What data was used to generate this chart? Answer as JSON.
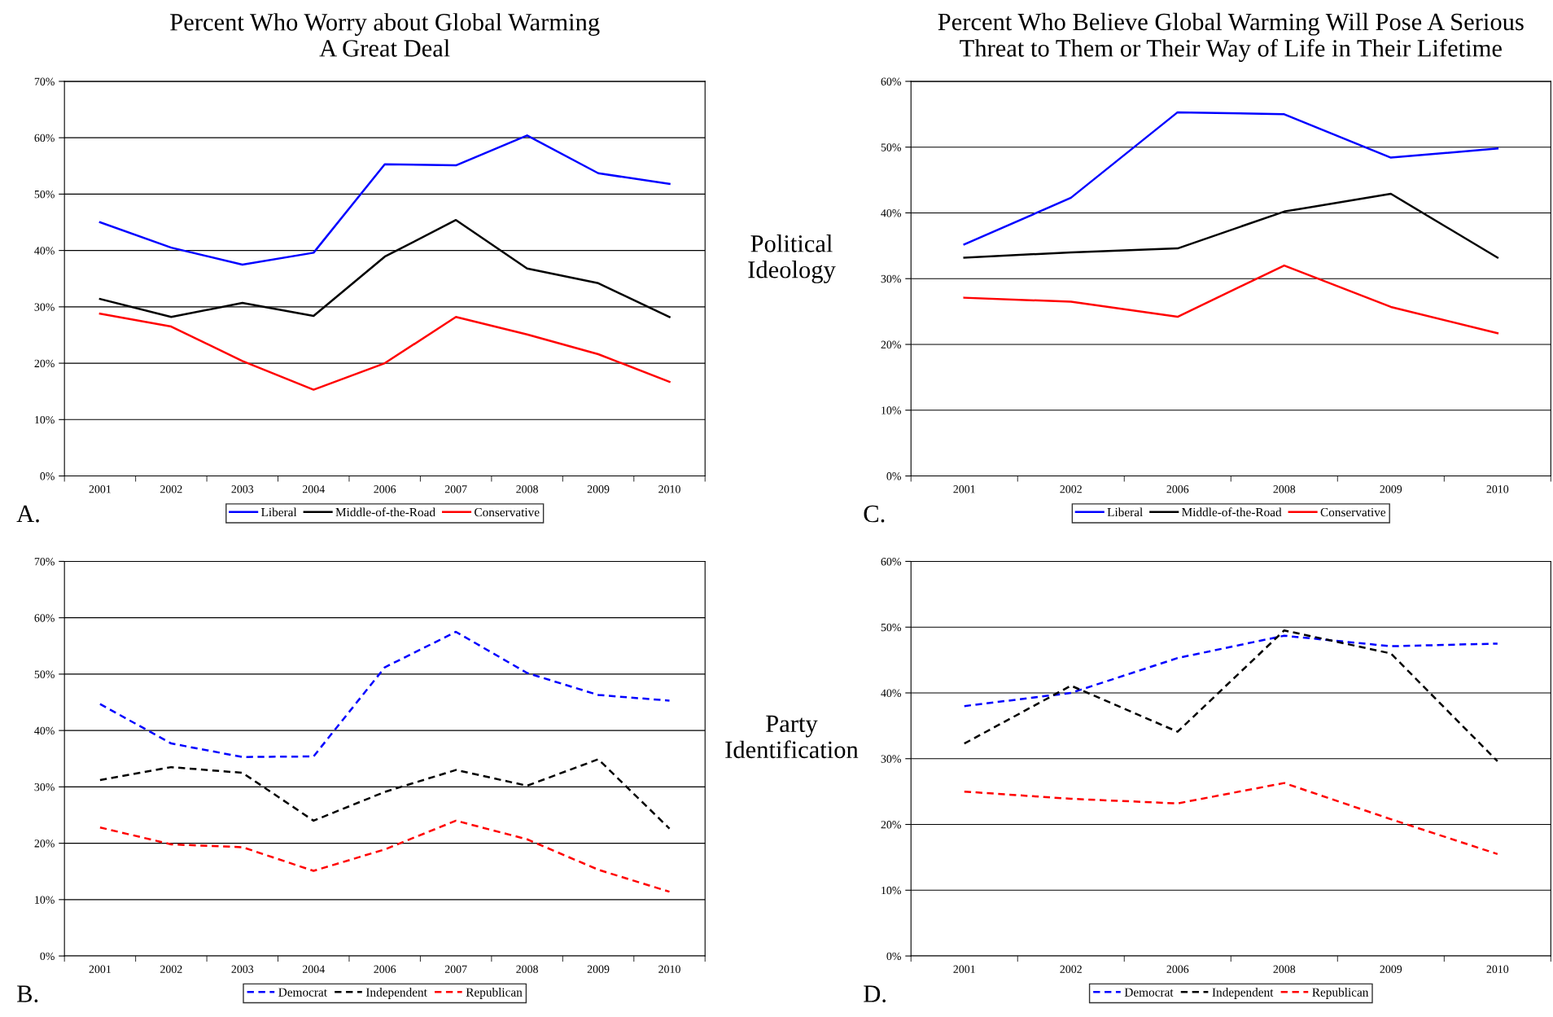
{
  "chart_data": [
    {
      "type": "line",
      "title": "Percent Who Worry about Global Warming\nA Great Deal",
      "categories": [
        "2001",
        "2002",
        "2003",
        "2004",
        "2006",
        "2007",
        "2008",
        "2009",
        "2010"
      ],
      "series": [
        {
          "name": "Liberal",
          "color": "#0000ff",
          "values": [
            45.0,
            40.5,
            37.5,
            39.6,
            55.3,
            55.1,
            60.4,
            53.7,
            51.8
          ]
        },
        {
          "name": "Middle-of-the-Road",
          "color": "#000000",
          "values": [
            31.4,
            28.2,
            30.7,
            28.4,
            38.9,
            45.4,
            36.8,
            34.2,
            28.2
          ]
        },
        {
          "name": "Conservative",
          "color": "#ff0000",
          "values": [
            28.8,
            26.5,
            20.4,
            15.3,
            20.0,
            28.2,
            25.1,
            21.6,
            16.7
          ]
        }
      ],
      "ylim": [
        0,
        70
      ],
      "yticks": [
        {
          "value": 0,
          "label": "0%"
        },
        {
          "value": 10,
          "label": "10%"
        },
        {
          "value": 20,
          "label": "20%"
        },
        {
          "value": 30,
          "label": "30%"
        },
        {
          "value": 40,
          "label": "40%"
        },
        {
          "value": 50,
          "label": "50%"
        },
        {
          "value": 60,
          "label": "60%"
        },
        {
          "value": 70,
          "label": "70%"
        }
      ],
      "grid": "y",
      "legend": "bottom",
      "line_style": "solid",
      "marker": "none",
      "annotations": [
        "A.",
        "Political\nIdeology"
      ]
    },
    {
      "type": "line",
      "categories": [
        "2001",
        "2002",
        "2003",
        "2004",
        "2006",
        "2007",
        "2008",
        "2009",
        "2010"
      ],
      "series": [
        {
          "name": "Democrat",
          "color": "#0000ff",
          "values": [
            44.7,
            37.7,
            35.3,
            35.4,
            51.2,
            57.5,
            50.2,
            46.3,
            45.3
          ]
        },
        {
          "name": "Independent",
          "color": "#000000",
          "values": [
            31.2,
            33.5,
            32.5,
            24.0,
            29.1,
            33.0,
            30.2,
            34.9,
            22.6
          ]
        },
        {
          "name": "Republican",
          "color": "#ff0000",
          "values": [
            22.8,
            19.8,
            19.3,
            15.1,
            18.9,
            24.0,
            20.7,
            15.3,
            11.4
          ]
        }
      ],
      "ylim": [
        0,
        70
      ],
      "yticks": [
        {
          "value": 0,
          "label": "0%"
        },
        {
          "value": 10,
          "label": "10%"
        },
        {
          "value": 20,
          "label": "20%"
        },
        {
          "value": 30,
          "label": "30%"
        },
        {
          "value": 40,
          "label": "40%"
        },
        {
          "value": 50,
          "label": "50%"
        },
        {
          "value": 60,
          "label": "60%"
        },
        {
          "value": 70,
          "label": "70%"
        }
      ],
      "grid": "y",
      "legend": "bottom",
      "line_style": "dashed",
      "marker": "none",
      "annotations": [
        "B.",
        "Party\nIdentification"
      ]
    },
    {
      "type": "line",
      "title": "Percent Who Believe Global Warming Will Pose A Serious\nThreat to Them or Their Way of Life in Their Lifetime",
      "categories": [
        "2001",
        "2002",
        "2006",
        "2008",
        "2009",
        "2010"
      ],
      "series": [
        {
          "name": "Liberal",
          "color": "#0000ff",
          "values": [
            35.2,
            42.3,
            55.3,
            55.0,
            48.4,
            49.8
          ]
        },
        {
          "name": "Middle-of-the-Road",
          "color": "#000000",
          "values": [
            33.2,
            34.0,
            34.6,
            40.2,
            42.9,
            33.2
          ]
        },
        {
          "name": "Conservative",
          "color": "#ff0000",
          "values": [
            27.1,
            26.5,
            24.2,
            32.0,
            25.7,
            21.7
          ]
        }
      ],
      "ylim": [
        0,
        60
      ],
      "yticks": [
        {
          "value": 0,
          "label": "0%"
        },
        {
          "value": 10,
          "label": "10%"
        },
        {
          "value": 20,
          "label": "20%"
        },
        {
          "value": 30,
          "label": "30%"
        },
        {
          "value": 40,
          "label": "40%"
        },
        {
          "value": 50,
          "label": "50%"
        },
        {
          "value": 60,
          "label": "60%"
        }
      ],
      "grid": "y",
      "legend": "bottom",
      "line_style": "solid",
      "marker": "none",
      "annotations": [
        "C."
      ]
    },
    {
      "type": "line",
      "categories": [
        "2001",
        "2002",
        "2006",
        "2008",
        "2009",
        "2010"
      ],
      "series": [
        {
          "name": "Democrat",
          "color": "#0000ff",
          "values": [
            38.0,
            40.0,
            45.3,
            48.7,
            47.1,
            47.5
          ]
        },
        {
          "name": "Independent",
          "color": "#000000",
          "values": [
            32.3,
            41.1,
            34.1,
            49.5,
            46.0,
            29.6
          ]
        },
        {
          "name": "Republican",
          "color": "#ff0000",
          "values": [
            25.0,
            23.9,
            23.2,
            26.3,
            20.8,
            15.5
          ]
        }
      ],
      "ylim": [
        0,
        60
      ],
      "yticks": [
        {
          "value": 0,
          "label": "0%"
        },
        {
          "value": 10,
          "label": "10%"
        },
        {
          "value": 20,
          "label": "20%"
        },
        {
          "value": 30,
          "label": "30%"
        },
        {
          "value": 40,
          "label": "40%"
        },
        {
          "value": 50,
          "label": "50%"
        },
        {
          "value": 60,
          "label": "60%"
        }
      ],
      "grid": "y",
      "legend": "bottom",
      "line_style": "dashed",
      "marker": "none",
      "annotations": [
        "D."
      ]
    }
  ]
}
